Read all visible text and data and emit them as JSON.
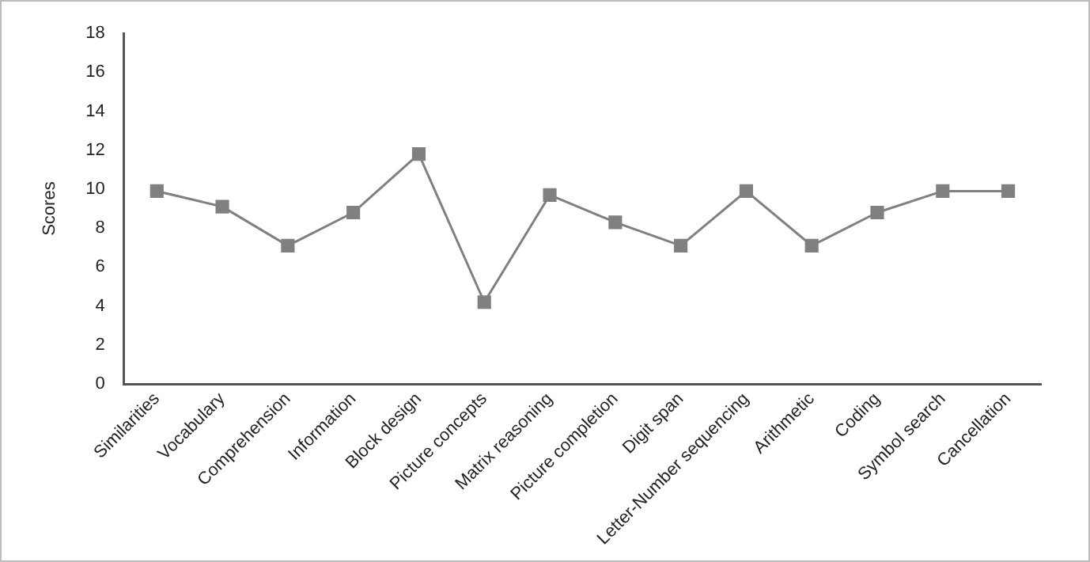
{
  "chart_data": {
    "type": "line",
    "ylabel": "Scores",
    "categories": [
      "Similarities",
      "Vocabulary",
      "Comprehension",
      "Information",
      "Block design",
      "Picture concepts",
      "Matrix reasoning",
      "Picture completion",
      "Digit span",
      "Letter-Number sequencing",
      "Arithmetic",
      "Coding",
      "Symbol search",
      "Cancellation"
    ],
    "series": [
      {
        "color": "#808080",
        "values": [
          9.9,
          9.1,
          7.1,
          8.8,
          11.8,
          4.2,
          9.7,
          8.3,
          7.1,
          9.9,
          7.1,
          8.8,
          9.9,
          9.9
        ]
      }
    ],
    "ylim": [
      0,
      18
    ],
    "yticks": [
      0,
      2,
      4,
      6,
      8,
      10,
      12,
      14,
      16,
      18
    ],
    "grid": false,
    "legend": false,
    "marker": "square",
    "line_style": "solid"
  }
}
